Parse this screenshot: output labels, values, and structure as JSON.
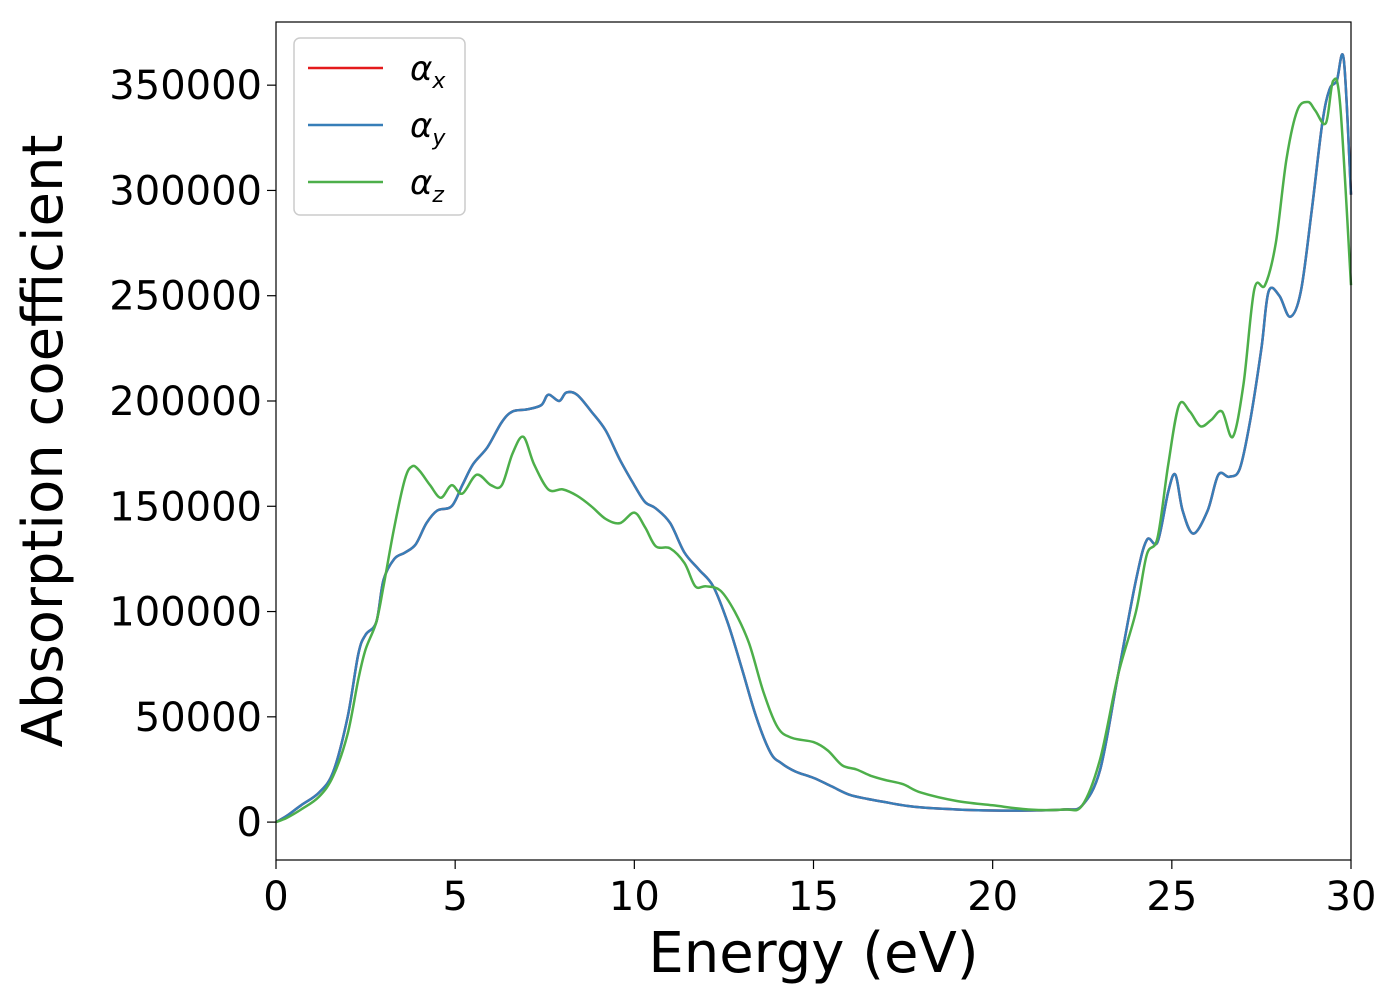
{
  "chart_data": {
    "type": "line",
    "xlabel": "Energy (eV)",
    "ylabel": "Absorption coefficient",
    "xlim": [
      0,
      30
    ],
    "ylim": [
      -18000,
      380000
    ],
    "xticks": [
      0,
      5,
      10,
      15,
      20,
      25,
      30
    ],
    "yticks": [
      0,
      50000,
      100000,
      150000,
      200000,
      250000,
      300000,
      350000
    ],
    "grid": false,
    "legend_position": "top-left",
    "series": [
      {
        "name": "α",
        "subscript": "x",
        "color": "#e41a1c",
        "x": [
          0,
          0.3,
          0.7,
          1.2,
          1.6,
          2.0,
          2.3,
          2.5,
          2.8,
          3.0,
          3.3,
          3.6,
          3.9,
          4.2,
          4.5,
          4.9,
          5.2,
          5.5,
          5.9,
          6.3,
          6.6,
          7.0,
          7.4,
          7.6,
          7.9,
          8.1,
          8.4,
          8.8,
          9.2,
          9.6,
          10.0,
          10.3,
          10.6,
          11.0,
          11.4,
          11.8,
          12.2,
          12.6,
          13.0,
          13.4,
          13.8,
          14.1,
          14.5,
          15.0,
          15.5,
          16.0,
          16.5,
          17.0,
          17.5,
          18.0,
          19.0,
          20.0,
          21.0,
          22.0,
          22.5,
          23.0,
          23.5,
          24.0,
          24.3,
          24.6,
          24.9,
          25.1,
          25.3,
          25.6,
          26.0,
          26.3,
          26.6,
          26.9,
          27.2,
          27.5,
          27.7,
          28.0,
          28.3,
          28.6,
          28.9,
          29.2,
          29.4,
          29.6,
          29.8,
          30.0
        ],
        "y": [
          0,
          3000,
          8000,
          14000,
          24000,
          50000,
          80000,
          89000,
          95000,
          115000,
          125000,
          128000,
          132000,
          142000,
          148000,
          150000,
          160000,
          170000,
          178000,
          190000,
          195000,
          196000,
          198000,
          203000,
          200000,
          204000,
          203000,
          195000,
          186000,
          172000,
          160000,
          152000,
          149000,
          142000,
          128000,
          120000,
          112000,
          95000,
          73000,
          50000,
          33000,
          28000,
          24000,
          21000,
          17000,
          13000,
          11000,
          9500,
          8000,
          7000,
          6000,
          5500,
          5500,
          6000,
          8000,
          25000,
          70000,
          115000,
          134000,
          133000,
          157000,
          165000,
          148000,
          137000,
          148000,
          165000,
          164000,
          168000,
          192000,
          225000,
          252000,
          250000,
          240000,
          252000,
          290000,
          332000,
          348000,
          352000,
          362000,
          298000
        ]
      },
      {
        "name": "α",
        "subscript": "y",
        "color": "#377eb8",
        "x": [
          0,
          0.3,
          0.7,
          1.2,
          1.6,
          2.0,
          2.3,
          2.5,
          2.8,
          3.0,
          3.3,
          3.6,
          3.9,
          4.2,
          4.5,
          4.9,
          5.2,
          5.5,
          5.9,
          6.3,
          6.6,
          7.0,
          7.4,
          7.6,
          7.9,
          8.1,
          8.4,
          8.8,
          9.2,
          9.6,
          10.0,
          10.3,
          10.6,
          11.0,
          11.4,
          11.8,
          12.2,
          12.6,
          13.0,
          13.4,
          13.8,
          14.1,
          14.5,
          15.0,
          15.5,
          16.0,
          16.5,
          17.0,
          17.5,
          18.0,
          19.0,
          20.0,
          21.0,
          22.0,
          22.5,
          23.0,
          23.5,
          24.0,
          24.3,
          24.6,
          24.9,
          25.1,
          25.3,
          25.6,
          26.0,
          26.3,
          26.6,
          26.9,
          27.2,
          27.5,
          27.7,
          28.0,
          28.3,
          28.6,
          28.9,
          29.2,
          29.4,
          29.6,
          29.8,
          30.0
        ],
        "y": [
          0,
          3000,
          8000,
          14000,
          24000,
          50000,
          80000,
          89000,
          95000,
          115000,
          125000,
          128000,
          132000,
          142000,
          148000,
          150000,
          160000,
          170000,
          178000,
          190000,
          195000,
          196000,
          198000,
          203000,
          200000,
          204000,
          203000,
          195000,
          186000,
          172000,
          160000,
          152000,
          149000,
          142000,
          128000,
          120000,
          112000,
          95000,
          73000,
          50000,
          33000,
          28000,
          24000,
          21000,
          17000,
          13000,
          11000,
          9500,
          8000,
          7000,
          6000,
          5500,
          5500,
          6000,
          8000,
          25000,
          70000,
          115000,
          134000,
          133000,
          157000,
          165000,
          148000,
          137000,
          148000,
          165000,
          164000,
          168000,
          192000,
          225000,
          252000,
          250000,
          240000,
          252000,
          290000,
          332000,
          348000,
          352000,
          362000,
          298000
        ]
      },
      {
        "name": "α",
        "subscript": "z",
        "color": "#4daf4a",
        "x": [
          0,
          0.3,
          0.7,
          1.2,
          1.6,
          2.0,
          2.3,
          2.5,
          2.8,
          3.0,
          3.3,
          3.6,
          3.8,
          4.0,
          4.3,
          4.6,
          4.9,
          5.2,
          5.6,
          6.0,
          6.3,
          6.6,
          6.9,
          7.2,
          7.6,
          8.0,
          8.4,
          8.8,
          9.2,
          9.6,
          10.0,
          10.3,
          10.6,
          11.0,
          11.4,
          11.7,
          12.0,
          12.4,
          12.8,
          13.2,
          13.6,
          14.0,
          14.4,
          15.0,
          15.4,
          15.8,
          16.2,
          16.6,
          17.0,
          17.5,
          18.0,
          19.0,
          20.0,
          21.0,
          22.0,
          22.5,
          23.0,
          23.5,
          24.0,
          24.3,
          24.6,
          24.9,
          25.2,
          25.5,
          25.8,
          26.1,
          26.4,
          26.7,
          27.0,
          27.3,
          27.6,
          27.9,
          28.2,
          28.5,
          28.8,
          29.0,
          29.3,
          29.5,
          29.7,
          30.0
        ],
        "y": [
          0,
          2000,
          6000,
          12000,
          22000,
          42000,
          68000,
          82000,
          95000,
          112000,
          140000,
          163000,
          169000,
          167000,
          160000,
          154000,
          160000,
          156000,
          165000,
          160000,
          160000,
          175000,
          183000,
          170000,
          158000,
          158000,
          155000,
          150000,
          144000,
          142000,
          147000,
          140000,
          131000,
          130000,
          123000,
          112000,
          112000,
          110000,
          100000,
          85000,
          62000,
          45000,
          40000,
          38000,
          34000,
          27000,
          25000,
          22000,
          20000,
          18000,
          14000,
          10000,
          8000,
          6000,
          6000,
          8000,
          30000,
          70000,
          100000,
          127000,
          135000,
          170000,
          198000,
          195000,
          188000,
          191000,
          195000,
          183000,
          208000,
          253000,
          255000,
          275000,
          315000,
          338000,
          342000,
          338000,
          332000,
          352000,
          340000,
          255000
        ]
      }
    ]
  }
}
